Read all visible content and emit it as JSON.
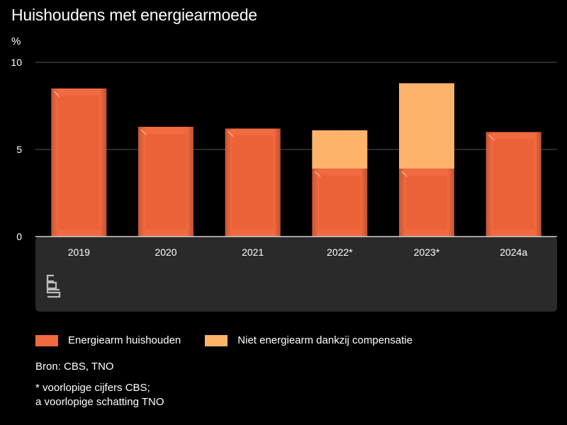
{
  "title": "Huishoudens met energiearmoede",
  "unit_label": "%",
  "colors": {
    "energiearm": "#f26a3f",
    "energiearm_dark": "#e0522a",
    "compensatie": "#fdb36a",
    "panel": "#2a2a2a",
    "grid": "#555555"
  },
  "chart_data": {
    "type": "bar",
    "stacked": true,
    "title": "Huishoudens met energiearmoede",
    "ylabel": "%",
    "ylim": [
      0,
      10
    ],
    "yticks": [
      0,
      5,
      10
    ],
    "categories": [
      "2019",
      "2020",
      "2021",
      "2022*",
      "2023*",
      "2024a"
    ],
    "series": [
      {
        "name": "Energiearm huishouden",
        "values": [
          8.5,
          6.3,
          6.2,
          3.9,
          3.9,
          6.0
        ]
      },
      {
        "name": "Niet energiearm dankzij compensatie",
        "values": [
          0,
          0,
          0,
          2.2,
          4.9,
          0
        ]
      }
    ]
  },
  "legend": {
    "items": [
      {
        "label": "Energiearm huishouden"
      },
      {
        "label": "Niet energiearm dankzij compensatie"
      }
    ]
  },
  "logo": {
    "name": "cbs"
  },
  "source": "Bron: CBS, TNO",
  "notes": {
    "line1": "* voorlopige cijfers CBS;",
    "line2": "a voorlopige schatting TNO"
  }
}
